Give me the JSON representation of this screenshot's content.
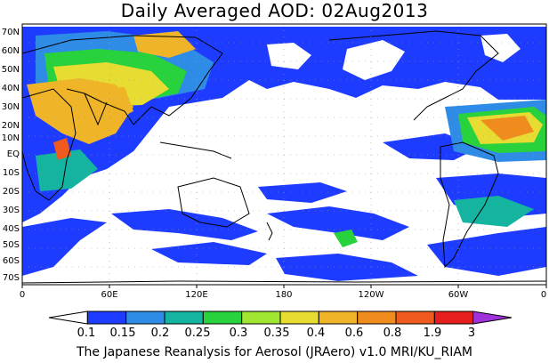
{
  "title": "Daily Averaged AOD: 02Aug2013",
  "footer": "The Japanese Reanalysis for Aerosol (JRAero) v1.0 MRI/KU_RIAM",
  "lat_labels": [
    "70N",
    "60N",
    "50N",
    "40N",
    "30N",
    "20N",
    "10N",
    "EQ",
    "10S",
    "20S",
    "30S",
    "40S",
    "50S",
    "60S",
    "70S"
  ],
  "lon_labels": [
    "0",
    "60E",
    "120E",
    "180",
    "120W",
    "60W",
    "0"
  ],
  "colorbar": {
    "labels": [
      "0.1",
      "0.15",
      "0.2",
      "0.25",
      "0.3",
      "0.35",
      "0.4",
      "0.6",
      "0.8",
      "1.9",
      "3"
    ],
    "colors": [
      "#ffffff",
      "#1e3cff",
      "#2e8ce6",
      "#14b4a0",
      "#28d23c",
      "#a0e632",
      "#e6dc32",
      "#f0b428",
      "#f08c1e",
      "#f05a1e",
      "#e61e1e",
      "#a032dc"
    ]
  }
}
